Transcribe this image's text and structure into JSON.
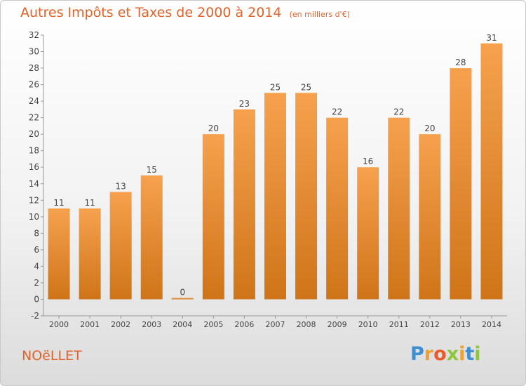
{
  "header": {
    "title": "Autres Impôts et Taxes de 2000 à 2014",
    "unit": "(en milliers d'€)"
  },
  "footer": {
    "commune": "NOëLLET",
    "brand_letters": [
      "P",
      "r",
      "o",
      "x",
      "i",
      "t",
      "i"
    ]
  },
  "colors": {
    "bar_top": "#f6a14e",
    "bar_bottom": "#cf7418",
    "title": "#e0632a"
  },
  "chart_data": {
    "type": "bar",
    "categories": [
      "2000",
      "2001",
      "2002",
      "2003",
      "2004",
      "2005",
      "2006",
      "2007",
      "2008",
      "2009",
      "2010",
      "2011",
      "2012",
      "2013",
      "2014"
    ],
    "values": [
      11,
      11,
      13,
      15,
      0,
      20,
      23,
      25,
      25,
      22,
      16,
      22,
      20,
      28,
      31
    ],
    "ylim": [
      -2,
      32
    ],
    "yticks": [
      -2,
      0,
      2,
      4,
      6,
      8,
      10,
      12,
      14,
      16,
      18,
      20,
      22,
      24,
      26,
      28,
      30,
      32
    ],
    "grid": false
  }
}
